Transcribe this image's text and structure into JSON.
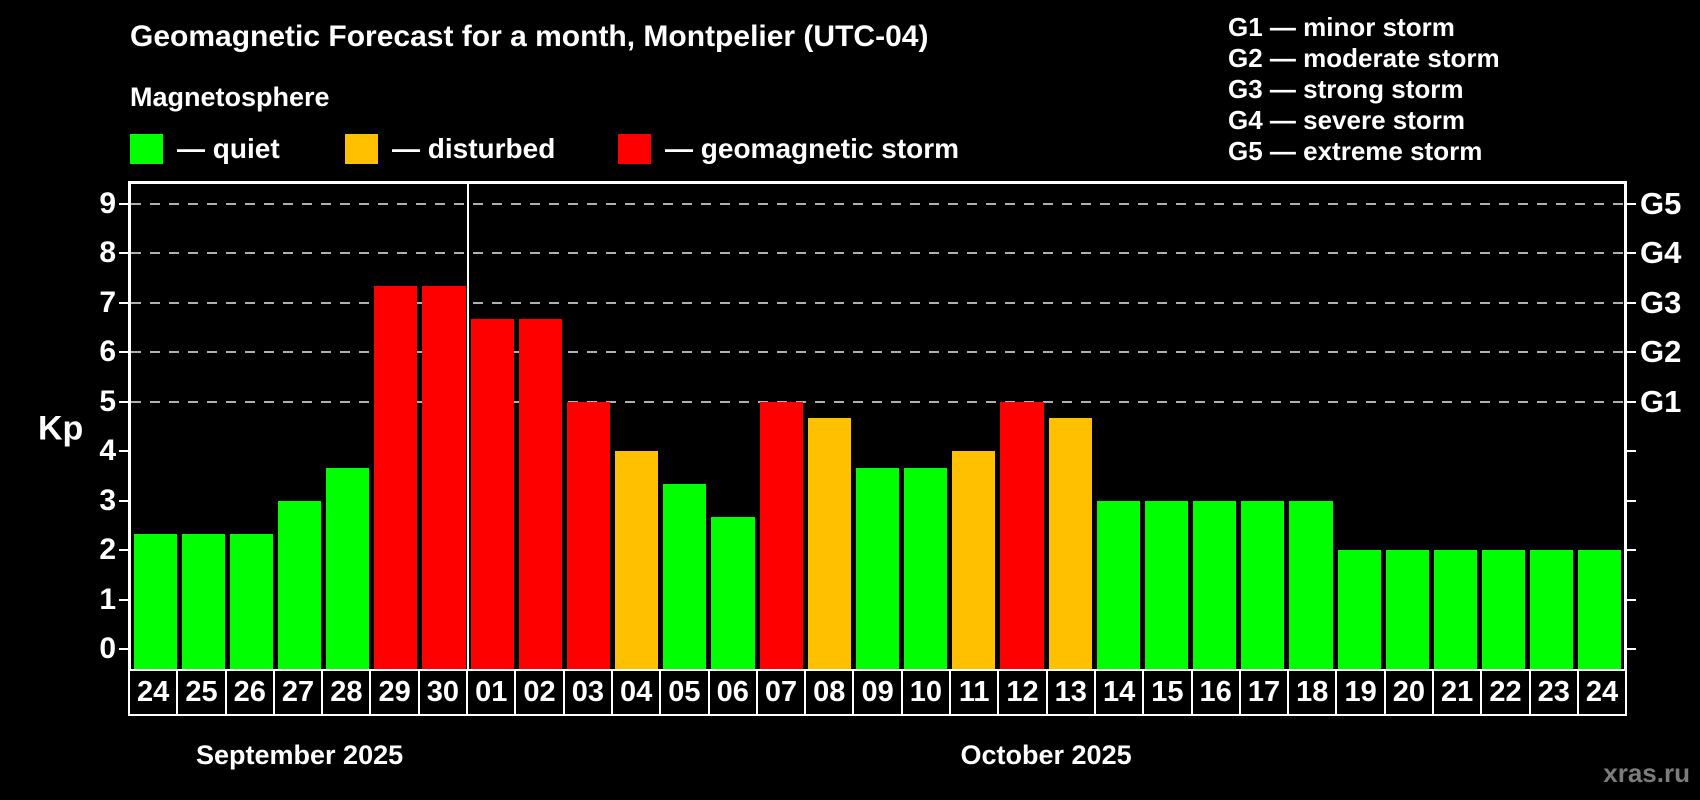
{
  "header": {
    "title": "Geomagnetic Forecast for a month, Montpelier (UTC-04)",
    "subtitle": "Magnetosphere"
  },
  "legend": {
    "items": [
      {
        "name": "quiet",
        "label": "— quiet",
        "color": "#00ff00"
      },
      {
        "name": "disturbed",
        "label": "— disturbed",
        "color": "#ffc000"
      },
      {
        "name": "storm",
        "label": "— geomagnetic storm",
        "color": "#ff0000"
      }
    ]
  },
  "storm_scale": {
    "lines": [
      "G1 — minor storm",
      "G2 — moderate storm",
      "G3 — strong storm",
      "G4 — severe storm",
      "G5 — extreme storm"
    ]
  },
  "y_axis": {
    "label": "Kp",
    "ticks": [
      0,
      1,
      2,
      3,
      4,
      5,
      6,
      7,
      8,
      9
    ]
  },
  "right_axis": {
    "labels": [
      {
        "kp": 5,
        "text": "G1"
      },
      {
        "kp": 6,
        "text": "G2"
      },
      {
        "kp": 7,
        "text": "G3"
      },
      {
        "kp": 8,
        "text": "G4"
      },
      {
        "kp": 9,
        "text": "G5"
      }
    ]
  },
  "watermark": "xras.ru",
  "chart_data": {
    "type": "bar",
    "title": "Geomagnetic Forecast for a month, Montpelier (UTC-04)",
    "subtitle": "Magnetosphere",
    "xlabel": "",
    "ylabel": "Kp",
    "ylim": [
      -0.4,
      9.4
    ],
    "yticks": [
      0,
      1,
      2,
      3,
      4,
      5,
      6,
      7,
      8,
      9
    ],
    "grid": "horizontal dashed gridlines only at Kp 5,6,7,8,9 (G1–G5 levels)",
    "gridlines_kp": [
      5,
      6,
      7,
      8,
      9
    ],
    "legend_position": "top-left",
    "months": [
      {
        "label": "September 2025",
        "days": 7
      },
      {
        "label": "October 2025",
        "days": 24
      }
    ],
    "categories": [
      "24",
      "25",
      "26",
      "27",
      "28",
      "29",
      "30",
      "01",
      "02",
      "03",
      "04",
      "05",
      "06",
      "07",
      "08",
      "09",
      "10",
      "11",
      "12",
      "13",
      "14",
      "15",
      "16",
      "17",
      "18",
      "19",
      "20",
      "21",
      "22",
      "23",
      "24"
    ],
    "values": [
      2.33,
      2.33,
      2.33,
      3.0,
      3.67,
      7.33,
      7.33,
      6.67,
      6.67,
      5.0,
      4.0,
      3.33,
      2.67,
      5.0,
      4.67,
      3.67,
      3.67,
      4.0,
      5.0,
      4.67,
      3.0,
      3.0,
      3.0,
      3.0,
      3.0,
      2.0,
      2.0,
      2.0,
      2.0,
      2.0,
      2.0
    ],
    "statuses": [
      "quiet",
      "quiet",
      "quiet",
      "quiet",
      "quiet",
      "storm",
      "storm",
      "storm",
      "storm",
      "storm",
      "disturbed",
      "quiet",
      "quiet",
      "storm",
      "disturbed",
      "quiet",
      "quiet",
      "disturbed",
      "storm",
      "disturbed",
      "quiet",
      "quiet",
      "quiet",
      "quiet",
      "quiet",
      "quiet",
      "quiet",
      "quiet",
      "quiet",
      "quiet",
      "quiet"
    ],
    "status_colors": {
      "quiet": "#00ff00",
      "disturbed": "#ffc000",
      "storm": "#ff0000"
    }
  }
}
